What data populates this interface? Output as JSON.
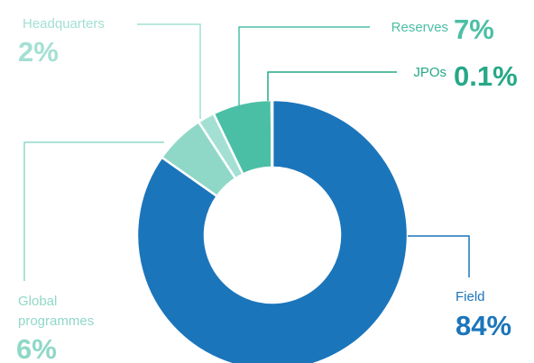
{
  "chart_data": {
    "type": "donut",
    "categories": [
      "Field",
      "Global programmes",
      "Headquarters",
      "Reserves",
      "JPOs"
    ],
    "values": [
      84,
      6,
      2,
      7,
      0.1
    ],
    "value_labels": [
      "84%",
      "6%",
      "2%",
      "7%",
      "0.1%"
    ],
    "colors": [
      "#1b75bb",
      "#8fd8c8",
      "#a3e0d3",
      "#4bbfa5",
      "#26a887"
    ]
  }
}
